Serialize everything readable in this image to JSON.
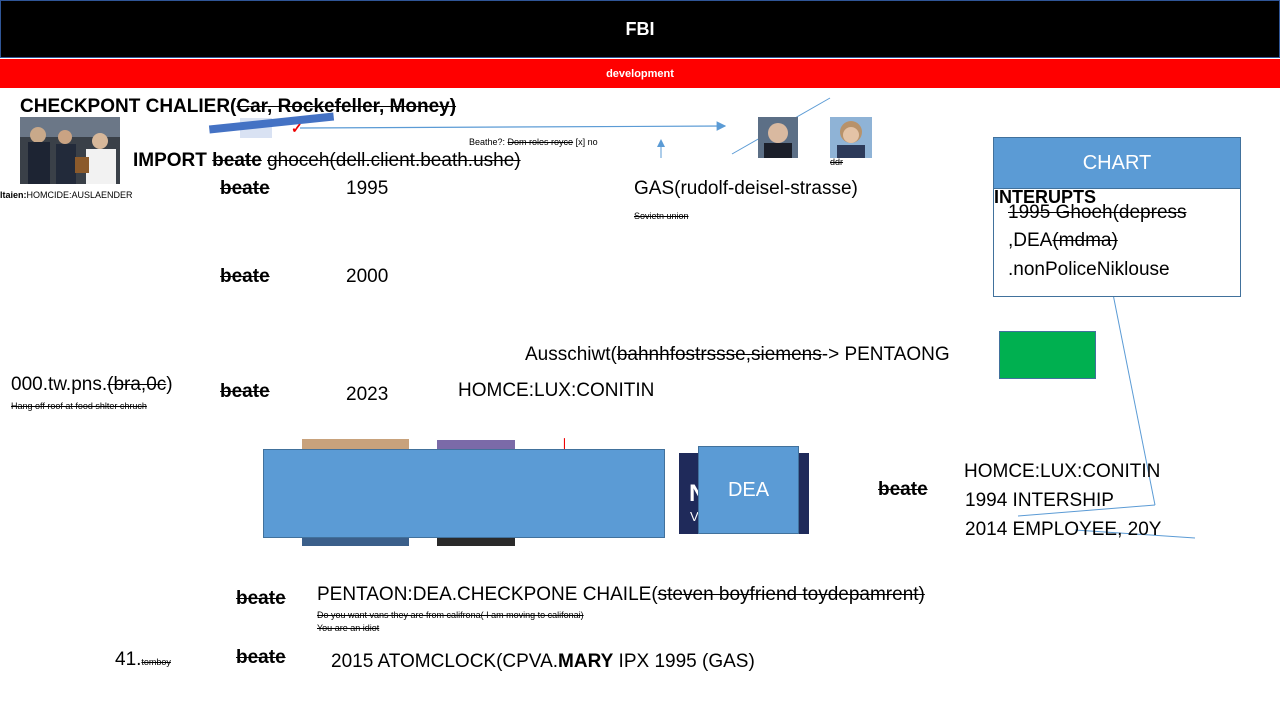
{
  "header": {
    "title": "FBI",
    "subtitle": "development"
  },
  "left": {
    "checkpoint_prefix": "CHECKPONT CHALIER(",
    "checkpoint_car": "Car",
    "checkpoint_rest": ", Rockefeller, Money)",
    "caption_bold": "ltaien:",
    "caption_rest": "HOMCIDE:AUSLAENDER",
    "import_label": "IMPORT",
    "import_beate": "beate",
    "import_rest": "ghoceh(dell.client.beath.ushe)",
    "tw_prefix": "000.tw.pns.",
    "tw_strike": "(bra,0c",
    "tw_suffix": ")",
    "tw_note": "Hang off roof at food shlter chruch",
    "num41": "41.",
    "tomboy": "tomboy"
  },
  "timeline": [
    {
      "name": "beate",
      "year": "1995"
    },
    {
      "name": "beate",
      "year": "2000"
    },
    {
      "name": "beate",
      "year": "2023"
    }
  ],
  "center": {
    "gas": "GAS(rudolf-deisel-strasse)",
    "soviet": "Sovietn union",
    "beathe_prefix": "Beathe?:",
    "beathe_strike": "Dom roles royce",
    "beathe_suffix": "[x] no",
    "ddr": "ddr",
    "ausschiwt_prefix": "Ausschiwt(",
    "ausschiwt_strike": "bahnhfostrssse,siemens",
    "ausschiwt_suffix": "-> PENTAONG",
    "homce": "HOMCE:LUX:CONITIN",
    "dea": "DEA",
    "navy_letter": "N",
    "navy_letter2": "V"
  },
  "chart": {
    "header": "CHART",
    "interupts": "INTERUPTS",
    "line1": "1995 Ghoeh(depress",
    "line2_prefix": ",DEA",
    "line2_strike": "(mdma)",
    "line3": ".nonPoliceNiklouse"
  },
  "right": {
    "beate": "beate",
    "homce": "HOMCE:LUX:CONITIN",
    "intership": "1994 INTERSHIP",
    "employee": "2014 EMPLOYEE, 20Y"
  },
  "bottom": {
    "beate1": "beate",
    "pentaon_prefix": "PENTAON:DEA.CHECKPONE CHAILE(",
    "pentaon_strike": "steven boyfriend toydepamrent)",
    "note1": "Do you want vans they are from califrona( I am moving to califonai)",
    "note2": "You are an idiot",
    "beate2": "beate",
    "atom_prefix": "2015 ATOMCLOCK(CPVA.",
    "atom_bold": "MARY",
    "atom_suffix": " IPX 1995  (GAS)"
  },
  "colors": {
    "accent_blue": "#5b9bd5",
    "green": "#00b050",
    "red": "#ff0000",
    "navy": "#1f2a5a"
  }
}
